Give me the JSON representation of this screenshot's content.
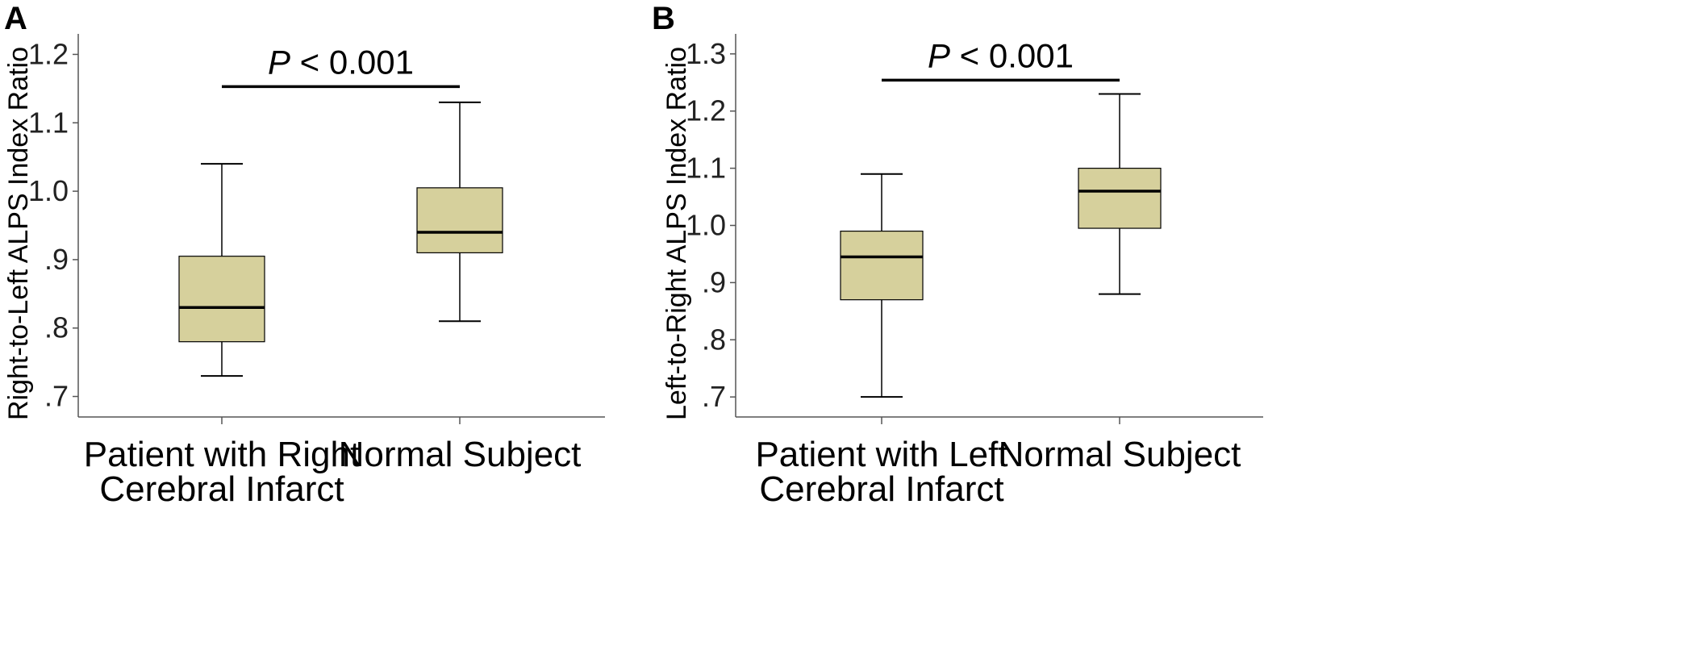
{
  "colors": {
    "box_fill": "#d6d09c",
    "stroke": "#000000",
    "axis": "#555555"
  },
  "chart_data": [
    {
      "type": "boxplot",
      "panel_label": "A",
      "ylabel": "Right-to-Left ALPS Index Ratio",
      "ylim": [
        0.67,
        1.23
      ],
      "yticks": [
        0.7,
        0.8,
        0.9,
        1.0,
        1.1,
        1.2
      ],
      "ytick_labels": [
        ".7",
        ".8",
        ".9",
        "1.0",
        "1.1",
        "1.2"
      ],
      "categories": [
        {
          "line1": "Patient with Right",
          "line2": "Cerebral Infarct"
        },
        {
          "line1": "Normal Subject",
          "line2": ""
        }
      ],
      "boxes": [
        {
          "min": 0.73,
          "q1": 0.78,
          "median": 0.83,
          "q3": 0.905,
          "max": 1.04
        },
        {
          "min": 0.81,
          "q1": 0.91,
          "median": 0.94,
          "q3": 1.005,
          "max": 1.13
        }
      ],
      "significance": {
        "p_symbol": "P",
        "p_rest": " < 0.001",
        "bar_y": 1.153
      }
    },
    {
      "type": "boxplot",
      "panel_label": "B",
      "ylabel": "Left-to-Right ALPS Index Ratio",
      "ylim": [
        0.665,
        1.335
      ],
      "yticks": [
        0.7,
        0.8,
        0.9,
        1.0,
        1.1,
        1.2,
        1.3
      ],
      "ytick_labels": [
        ".7",
        ".8",
        ".9",
        "1.0",
        "1.1",
        "1.2",
        "1.3"
      ],
      "categories": [
        {
          "line1": "Patient with Left",
          "line2": "Cerebral Infarct"
        },
        {
          "line1": "Normal Subject",
          "line2": ""
        }
      ],
      "boxes": [
        {
          "min": 0.7,
          "q1": 0.87,
          "median": 0.945,
          "q3": 0.99,
          "max": 1.09
        },
        {
          "min": 0.88,
          "q1": 0.995,
          "median": 1.06,
          "q3": 1.1,
          "max": 1.23
        }
      ],
      "significance": {
        "p_symbol": "P",
        "p_rest": " < 0.001",
        "bar_y": 1.254
      }
    }
  ]
}
